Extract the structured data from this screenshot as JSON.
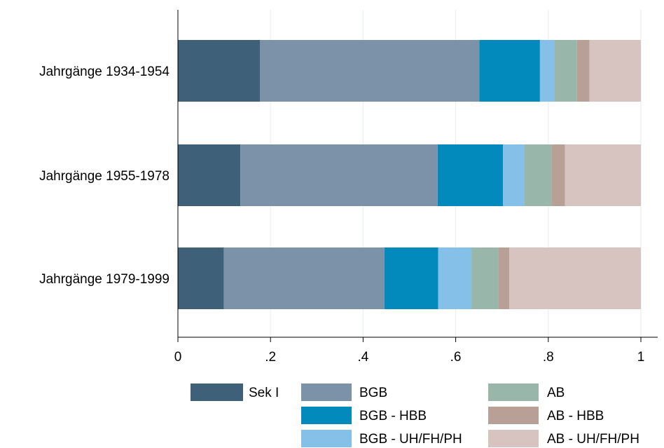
{
  "chart_data": {
    "type": "bar",
    "orientation": "horizontal",
    "stacked": true,
    "categories": [
      "Jahrgänge 1934-1954",
      "Jahrgänge 1955-1978",
      "Jahrgänge 1979-1999"
    ],
    "series": [
      {
        "name": "Sek I",
        "color": "#3e6079",
        "values": [
          0.177,
          0.135,
          0.099
        ]
      },
      {
        "name": "BGB",
        "color": "#7b92a9",
        "values": [
          0.474,
          0.426,
          0.347
        ]
      },
      {
        "name": "BGB - HBB",
        "color": "#028abc",
        "values": [
          0.131,
          0.141,
          0.116
        ]
      },
      {
        "name": "BGB - UH/FH/PH",
        "color": "#85c0e9",
        "values": [
          0.031,
          0.046,
          0.072
        ]
      },
      {
        "name": "AB",
        "color": "#98b6a9",
        "values": [
          0.049,
          0.059,
          0.058
        ]
      },
      {
        "name": "AB - HBB",
        "color": "#b9a097",
        "values": [
          0.027,
          0.029,
          0.024
        ]
      },
      {
        "name": "AB - UH/FH/PH",
        "color": "#d7c4c1",
        "values": [
          0.111,
          0.164,
          0.284
        ]
      }
    ],
    "xlim": [
      0,
      1
    ],
    "xticks": [
      "0",
      ".2",
      ".4",
      ".6",
      ".8",
      "1"
    ],
    "xtick_values": [
      0,
      0.2,
      0.4,
      0.6,
      0.8,
      1
    ],
    "grid": true,
    "legend_position": "bottom",
    "title": "",
    "xlabel": "",
    "ylabel": ""
  }
}
